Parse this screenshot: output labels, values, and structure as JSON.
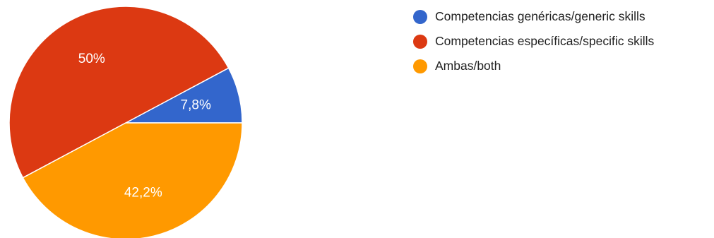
{
  "chart_data": {
    "type": "pie",
    "slices": [
      {
        "name": "Competencias genéricas/generic skills",
        "value": 7.8,
        "label": "7,8%",
        "color": "#3366cc"
      },
      {
        "name": "Competencias específicas/specific skills",
        "value": 50,
        "label": "50%",
        "color": "#dc3912"
      },
      {
        "name": "Ambas/both",
        "value": 42.2,
        "label": "42,2%",
        "color": "#ff9900"
      }
    ],
    "legend_position": "right"
  }
}
